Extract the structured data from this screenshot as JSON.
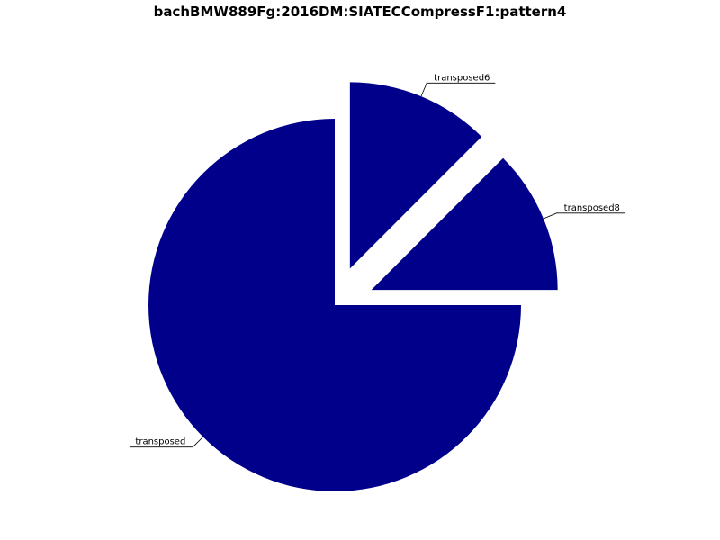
{
  "chart_data": {
    "type": "pie",
    "title": "bachBMW889Fg:2016DM:SIATECCompressF1:pattern4",
    "color": "#00008b",
    "slices": [
      {
        "label": "transposed",
        "value": 75.0,
        "exploded": false
      },
      {
        "label": "transposed8",
        "value": 12.5,
        "exploded": true
      },
      {
        "label": "transposed6",
        "value": 12.5,
        "exploded": true
      }
    ]
  }
}
